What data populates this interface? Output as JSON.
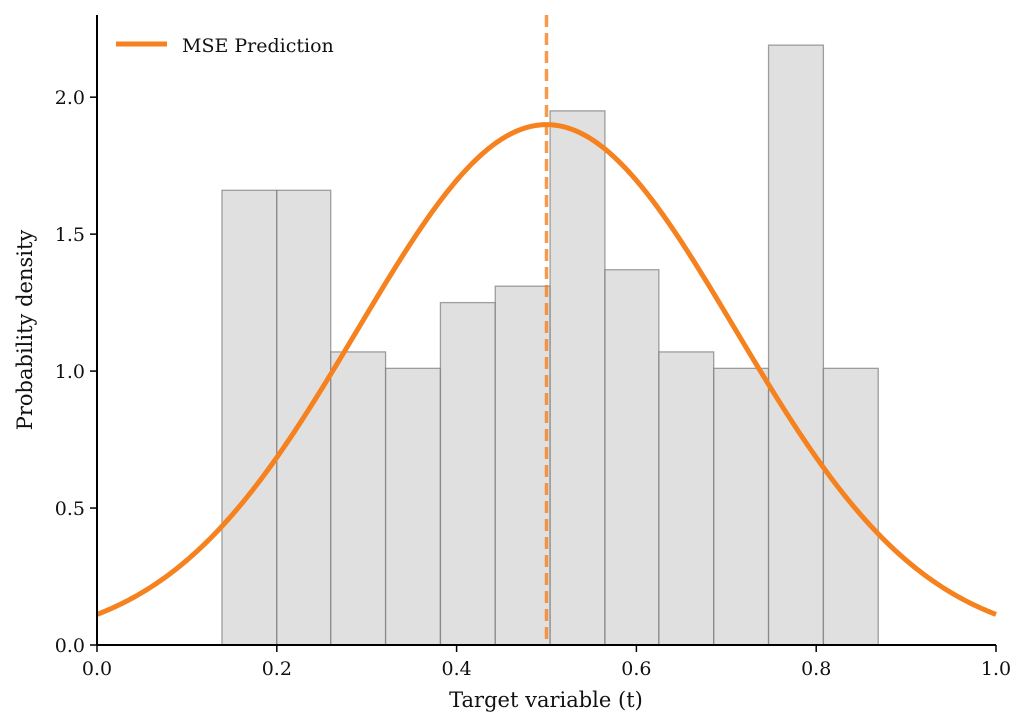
{
  "chart_data": {
    "type": "histogram",
    "xlabel": "Target variable (t)",
    "ylabel": "Probability density",
    "xlim": [
      0.0,
      1.0
    ],
    "ylim": [
      0.0,
      2.3
    ],
    "xticks": [
      "0.0",
      "0.2",
      "0.4",
      "0.6",
      "0.8",
      "1.0"
    ],
    "yticks": [
      "0.0",
      "0.5",
      "1.0",
      "1.5",
      "2.0"
    ],
    "histogram": {
      "bin_edges": [
        0.139,
        0.2,
        0.26,
        0.321,
        0.382,
        0.443,
        0.504,
        0.565,
        0.625,
        0.686,
        0.747,
        0.808,
        0.869
      ],
      "density": [
        1.66,
        1.66,
        1.07,
        1.01,
        1.25,
        1.31,
        1.95,
        1.37,
        1.07,
        1.01,
        2.19,
        1.01
      ],
      "color": "#d3d3d3"
    },
    "series": [
      {
        "name": "MSE Prediction",
        "kind": "gaussian_density",
        "mean": 0.5,
        "std": 0.21,
        "color": "#f5811f"
      }
    ],
    "annotations": [
      {
        "kind": "vertical_dashed_line",
        "x": 0.5,
        "color": "#f5811f"
      }
    ],
    "legend": {
      "entries": [
        "MSE Prediction"
      ],
      "placement": "top-left"
    },
    "grid": false
  }
}
